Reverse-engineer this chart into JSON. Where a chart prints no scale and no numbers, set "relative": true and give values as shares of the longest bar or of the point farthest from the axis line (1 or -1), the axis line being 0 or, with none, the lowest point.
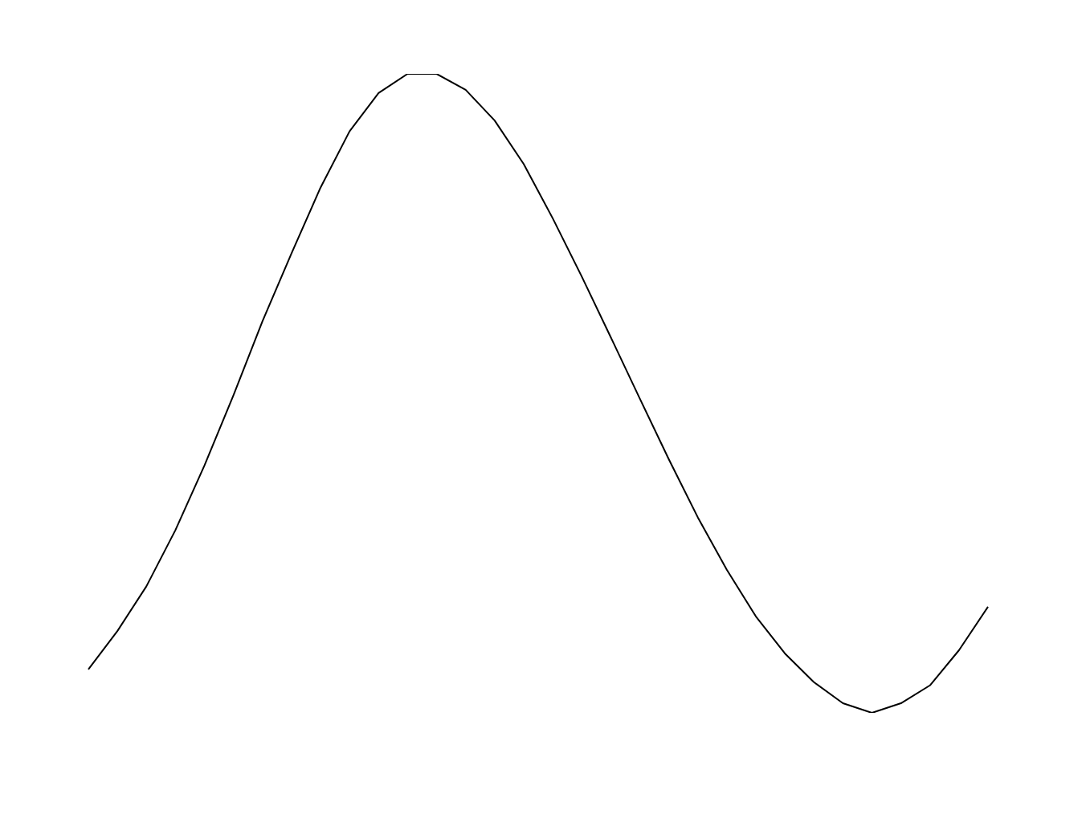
{
  "chart_data": {
    "type": "line",
    "relative": true,
    "categories": [
      null,
      null,
      null,
      null,
      null,
      null,
      null,
      null,
      null,
      null,
      null,
      null,
      null,
      null,
      null,
      null,
      null,
      null,
      null,
      null,
      null,
      null,
      null,
      null,
      null,
      null,
      null,
      null,
      null,
      null,
      null,
      null
    ],
    "series": [
      {
        "color": "#000000",
        "values": [
          0.068,
          0.128,
          0.198,
          0.286,
          0.387,
          0.497,
          0.613,
          0.719,
          0.822,
          0.91,
          0.97,
          1,
          1,
          0.975,
          0.927,
          0.859,
          0.774,
          0.683,
          0.588,
          0.492,
          0.397,
          0.306,
          0.224,
          0.151,
          0.093,
          0.048,
          0.015,
          0,
          0.015,
          0.043,
          0.098,
          0.166
        ]
      }
    ],
    "legend": false,
    "marker": "none",
    "line_style": "solid"
  }
}
